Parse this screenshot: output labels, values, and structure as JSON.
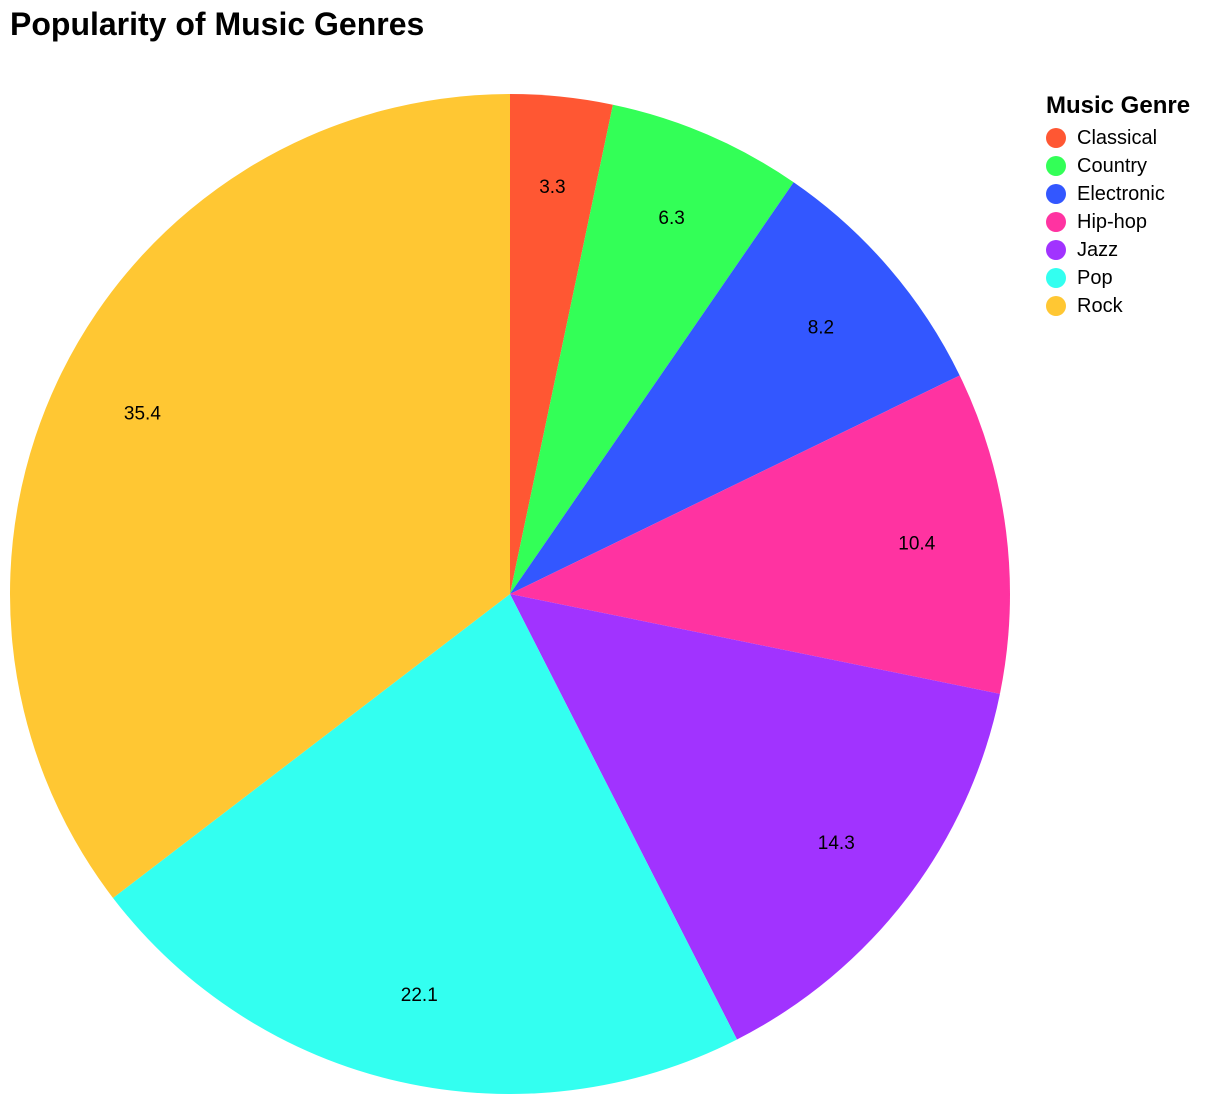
{
  "chart_data": {
    "type": "pie",
    "title": "Popularity of Music Genres",
    "legend": {
      "title": "Music Genre",
      "placement": "top-right"
    },
    "categories": [
      "Classical",
      "Country",
      "Electronic",
      "Hip-hop",
      "Jazz",
      "Pop",
      "Rock"
    ],
    "colors": [
      "#ff5733",
      "#33ff57",
      "#3357ff",
      "#ff33a1",
      "#a133ff",
      "#33fff0",
      "#ffc733"
    ],
    "slices": [
      {
        "genre": "Rock",
        "value": 35.4
      },
      {
        "genre": "Pop",
        "value": 22.1
      },
      {
        "genre": "Jazz",
        "value": 14.3
      },
      {
        "genre": "Hip-hop",
        "value": 10.4
      },
      {
        "genre": "Electronic",
        "value": 8.2
      },
      {
        "genre": "Country",
        "value": 6.3
      },
      {
        "genre": "Classical",
        "value": 3.3
      }
    ],
    "data_labels": [
      "3.3",
      "6.3",
      "8.2",
      "10.4",
      "14.3",
      "22.1",
      "35.4"
    ]
  }
}
